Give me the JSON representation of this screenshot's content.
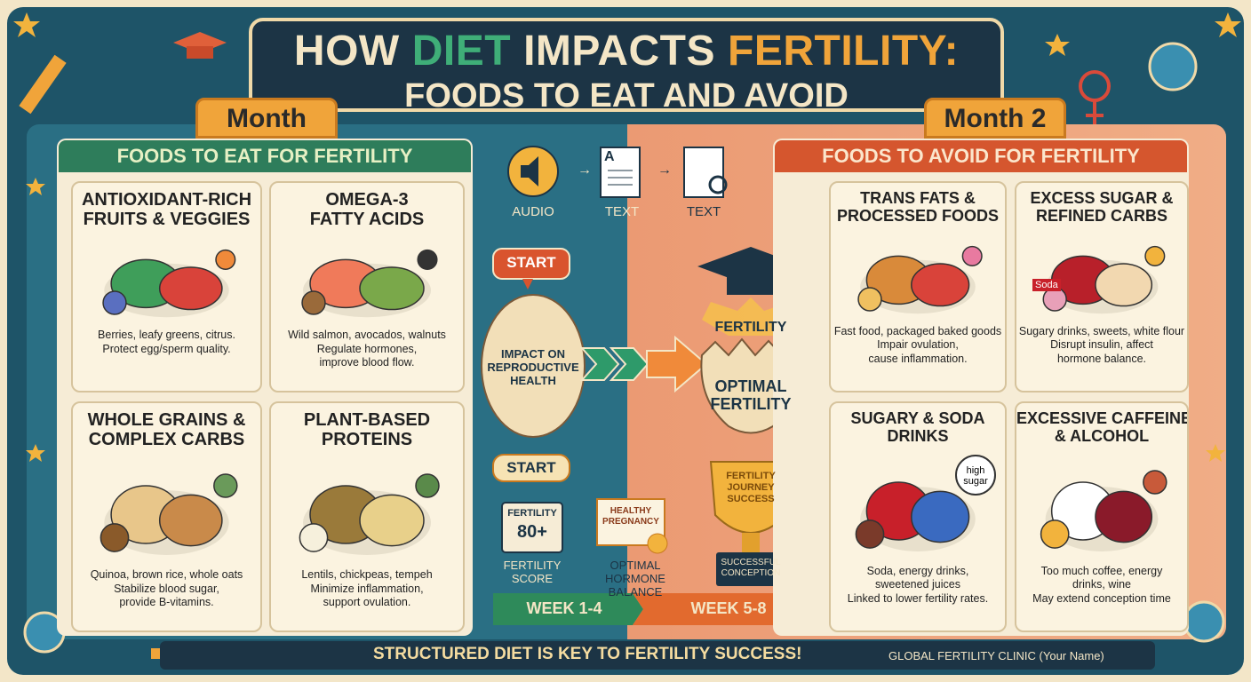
{
  "title": {
    "parts": [
      "HOW",
      "DIET",
      "IMPACTS",
      "FERTILITY:"
    ],
    "subtitle": "FOODS TO EAT AND AVOID"
  },
  "eat": {
    "tab": "Month",
    "header": "FOODS TO EAT FOR FERTILITY",
    "cards": [
      {
        "title": [
          "ANTIOXIDANT-RICH",
          "FRUITS & VEGGIES"
        ],
        "desc": [
          "Berries, leafy greens, citrus.",
          "Protect egg/sperm quality."
        ]
      },
      {
        "title": [
          "OMEGA-3",
          "FATTY ACIDS"
        ],
        "desc": [
          "Wild salmon, avocados, walnuts",
          "Regulate hormones,",
          "improve blood flow."
        ]
      },
      {
        "title": [
          "WHOLE GRAINS &",
          "COMPLEX CARBS"
        ],
        "desc": [
          "Quinoa, brown rice, whole oats",
          "Stabilize blood sugar,",
          "provide B-vitamins."
        ]
      },
      {
        "title": [
          "PLANT-BASED",
          "PROTEINS"
        ],
        "desc": [
          "Lentils, chickpeas, tempeh",
          "Minimize inflammation,",
          "support ovulation."
        ]
      }
    ]
  },
  "avoid": {
    "tab": "Month 2",
    "header": "FOODS TO AVOID FOR FERTILITY",
    "cards": [
      {
        "title": [
          "TRANS FATS &",
          "PROCESSED FOODS"
        ],
        "desc": [
          "Fast food, packaged baked goods",
          "Impair ovulation,",
          "cause inflammation."
        ]
      },
      {
        "title": [
          "EXCESS SUGAR &",
          "REFINED CARBS"
        ],
        "desc": [
          "Sugary drinks, sweets, white flour",
          "Disrupt insulin, affect",
          "hormone balance."
        ],
        "label": "Soda"
      },
      {
        "title": [
          "SUGARY & SODA",
          "DRINKS"
        ],
        "desc": [
          "Soda, energy drinks,",
          "sweetened juices",
          "Linked to lower fertility rates."
        ],
        "badge": [
          "high",
          "sugar"
        ]
      },
      {
        "title": [
          "EXCESSIVE CAFFEINE",
          "& ALCOHOL"
        ],
        "desc": [
          "Too much coffee, energy",
          "drinks, wine",
          "May extend conception time"
        ]
      }
    ]
  },
  "flow": {
    "steps": [
      "AUDIO",
      "TEXT",
      "TEXT"
    ],
    "doc_letter": "A"
  },
  "journey": {
    "start_bubble": "START",
    "egg": [
      "IMPACT ON",
      "REPRODUCTIVE",
      "HEALTH"
    ],
    "cracked_top": "FERTILITY",
    "cracked_egg": [
      "OPTIMAL",
      "FERTILITY"
    ],
    "start_button": "START",
    "score": {
      "title": "FERTILITY",
      "value": "80+",
      "caption": [
        "FERTILITY",
        "SCORE"
      ]
    },
    "certificate": {
      "title": [
        "HEALTHY",
        "PREGNANCY"
      ],
      "caption": [
        "OPTIMAL",
        "HORMONE BALANCE"
      ]
    },
    "trophy": {
      "title": [
        "FERTILITY",
        "JOURNEY",
        "SUCCESS"
      ],
      "plaque": [
        "SUCCESSFUL",
        "CONCEPTION"
      ]
    },
    "weeks": [
      "WEEK 1-4",
      "WEEK 5-8"
    ]
  },
  "footer": {
    "slogan": "STRUCTURED DIET IS KEY TO FERTILITY SUCCESS!",
    "credit": "GLOBAL FERTILITY CLINIC (Your Name)"
  }
}
